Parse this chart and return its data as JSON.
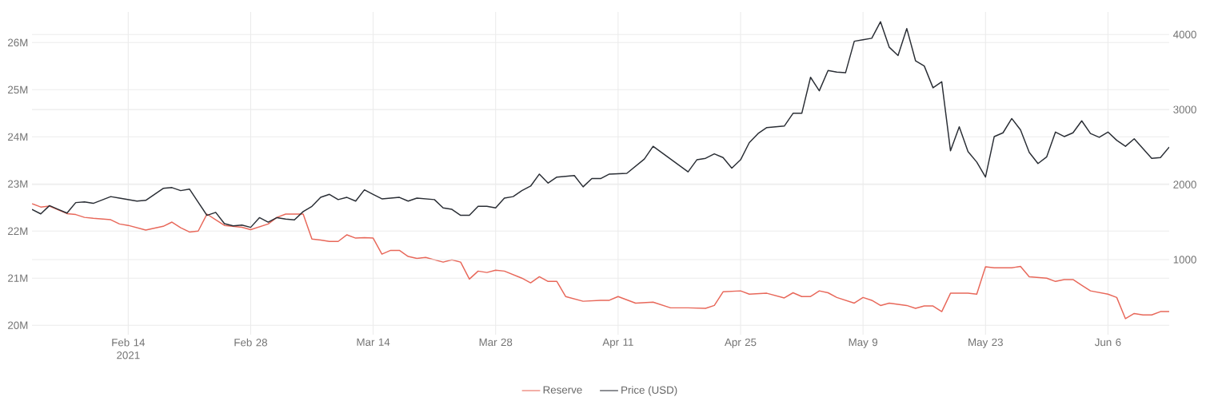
{
  "chart_data": {
    "type": "line",
    "xlim": [
      "2021-02-03",
      "2021-06-13"
    ],
    "xticks": [
      {
        "value": "2021-02-14",
        "label": "Feb 14 2021"
      },
      {
        "value": "2021-02-28",
        "label": "Feb 28"
      },
      {
        "value": "2021-03-14",
        "label": "Mar 14"
      },
      {
        "value": "2021-03-28",
        "label": "Mar 28"
      },
      {
        "value": "2021-04-11",
        "label": "Apr 11"
      },
      {
        "value": "2021-04-25",
        "label": "Apr 25"
      },
      {
        "value": "2021-05-09",
        "label": "May 9"
      },
      {
        "value": "2021-05-23",
        "label": "May 23"
      },
      {
        "value": "2021-06-06",
        "label": "Jun 6"
      }
    ],
    "ylim": [
      19.8,
      26.65
    ],
    "yticks": [
      {
        "value": 20,
        "label": "20M"
      },
      {
        "value": 21,
        "label": "21M"
      },
      {
        "value": 22,
        "label": "22M"
      },
      {
        "value": 23,
        "label": "23M"
      },
      {
        "value": 24,
        "label": "24M"
      },
      {
        "value": 25,
        "label": "25M"
      },
      {
        "value": 26,
        "label": "26M"
      }
    ],
    "y2lim": [
      0,
      4300
    ],
    "y2ticks": [
      1000,
      2000,
      3000,
      4000
    ],
    "grid": true,
    "legend": "bottom",
    "series": [
      {
        "name": "Reserve",
        "color": "#e8685a",
        "x": [
          "2021-02-03",
          "2021-02-04",
          "2021-02-05",
          "2021-02-07",
          "2021-02-08",
          "2021-02-09",
          "2021-02-10",
          "2021-02-12",
          "2021-02-13",
          "2021-02-14",
          "2021-02-16",
          "2021-02-18",
          "2021-02-19",
          "2021-02-20",
          "2021-02-21",
          "2021-02-22",
          "2021-02-23",
          "2021-02-24",
          "2021-02-25",
          "2021-02-27",
          "2021-02-28",
          "2021-03-02",
          "2021-03-03",
          "2021-03-04",
          "2021-03-06",
          "2021-03-07",
          "2021-03-08",
          "2021-03-09",
          "2021-03-10",
          "2021-03-11",
          "2021-03-12",
          "2021-03-13",
          "2021-03-14",
          "2021-03-15",
          "2021-03-16",
          "2021-03-17",
          "2021-03-18",
          "2021-03-19",
          "2021-03-20",
          "2021-03-22",
          "2021-03-23",
          "2021-03-24",
          "2021-03-25",
          "2021-03-26",
          "2021-03-27",
          "2021-03-28",
          "2021-03-29",
          "2021-03-31",
          "2021-04-01",
          "2021-04-02",
          "2021-04-03",
          "2021-04-04",
          "2021-04-05",
          "2021-04-07",
          "2021-04-09",
          "2021-04-10",
          "2021-04-11",
          "2021-04-13",
          "2021-04-15",
          "2021-04-17",
          "2021-04-19",
          "2021-04-21",
          "2021-04-22",
          "2021-04-23",
          "2021-04-25",
          "2021-04-26",
          "2021-04-28",
          "2021-04-30",
          "2021-05-01",
          "2021-05-02",
          "2021-05-03",
          "2021-05-04",
          "2021-05-05",
          "2021-05-06",
          "2021-05-08",
          "2021-05-09",
          "2021-05-10",
          "2021-05-11",
          "2021-05-12",
          "2021-05-14",
          "2021-05-15",
          "2021-05-16",
          "2021-05-17",
          "2021-05-18",
          "2021-05-19",
          "2021-05-21",
          "2021-05-22",
          "2021-05-23",
          "2021-05-24",
          "2021-05-26",
          "2021-05-27",
          "2021-05-28",
          "2021-05-30",
          "2021-05-31",
          "2021-06-01",
          "2021-06-02",
          "2021-06-03",
          "2021-06-04",
          "2021-06-06",
          "2021-06-07",
          "2021-06-08",
          "2021-06-09",
          "2021-06-10",
          "2021-06-11",
          "2021-06-12",
          "2021-06-13"
        ],
        "values": [
          22.58,
          22.51,
          22.53,
          22.37,
          22.35,
          22.29,
          22.27,
          22.24,
          22.15,
          22.12,
          22.02,
          22.1,
          22.19,
          22.07,
          21.98,
          22.0,
          22.36,
          22.24,
          22.12,
          22.08,
          22.03,
          22.15,
          22.29,
          22.36,
          22.36,
          21.83,
          21.81,
          21.78,
          21.78,
          21.92,
          21.85,
          21.86,
          21.85,
          21.51,
          21.59,
          21.59,
          21.46,
          21.42,
          21.44,
          21.34,
          21.39,
          21.34,
          20.98,
          21.15,
          21.12,
          21.17,
          21.15,
          21.0,
          20.9,
          21.03,
          20.93,
          20.93,
          20.61,
          20.51,
          20.53,
          20.53,
          20.61,
          20.47,
          20.49,
          20.37,
          20.37,
          20.36,
          20.42,
          20.71,
          20.73,
          20.66,
          20.68,
          20.58,
          20.69,
          20.61,
          20.61,
          20.73,
          20.69,
          20.59,
          20.47,
          20.59,
          20.53,
          20.42,
          20.47,
          20.42,
          20.36,
          20.41,
          20.41,
          20.29,
          20.68,
          20.68,
          20.66,
          21.24,
          21.22,
          21.22,
          21.25,
          21.03,
          21.0,
          20.93,
          20.97,
          20.97,
          20.85,
          20.73,
          20.66,
          20.59,
          20.14,
          20.25,
          20.22,
          20.22,
          20.29,
          20.29
        ]
      },
      {
        "name": "Price (USD)",
        "color": "#2a2e35",
        "axis": "y2",
        "x": [
          "2021-02-03",
          "2021-02-04",
          "2021-02-05",
          "2021-02-06",
          "2021-02-07",
          "2021-02-08",
          "2021-02-09",
          "2021-02-10",
          "2021-02-12",
          "2021-02-13",
          "2021-02-15",
          "2021-02-16",
          "2021-02-17",
          "2021-02-18",
          "2021-02-19",
          "2021-02-20",
          "2021-02-21",
          "2021-02-23",
          "2021-02-24",
          "2021-02-25",
          "2021-02-26",
          "2021-02-27",
          "2021-02-28",
          "2021-03-01",
          "2021-03-02",
          "2021-03-03",
          "2021-03-04",
          "2021-03-05",
          "2021-03-06",
          "2021-03-07",
          "2021-03-08",
          "2021-03-09",
          "2021-03-10",
          "2021-03-11",
          "2021-03-12",
          "2021-03-13",
          "2021-03-14",
          "2021-03-15",
          "2021-03-17",
          "2021-03-18",
          "2021-03-19",
          "2021-03-21",
          "2021-03-22",
          "2021-03-23",
          "2021-03-24",
          "2021-03-25",
          "2021-03-26",
          "2021-03-27",
          "2021-03-28",
          "2021-03-29",
          "2021-03-30",
          "2021-03-31",
          "2021-04-01",
          "2021-04-02",
          "2021-04-03",
          "2021-04-04",
          "2021-04-06",
          "2021-04-07",
          "2021-04-08",
          "2021-04-09",
          "2021-04-10",
          "2021-04-12",
          "2021-04-14",
          "2021-04-15",
          "2021-04-17",
          "2021-04-19",
          "2021-04-20",
          "2021-04-21",
          "2021-04-22",
          "2021-04-23",
          "2021-04-24",
          "2021-04-25",
          "2021-04-26",
          "2021-04-27",
          "2021-04-28",
          "2021-04-30",
          "2021-05-01",
          "2021-05-02",
          "2021-05-03",
          "2021-05-04",
          "2021-05-05",
          "2021-05-06",
          "2021-05-07",
          "2021-05-08",
          "2021-05-09",
          "2021-05-10",
          "2021-05-11",
          "2021-05-12",
          "2021-05-13",
          "2021-05-14",
          "2021-05-15",
          "2021-05-16",
          "2021-05-17",
          "2021-05-18",
          "2021-05-19",
          "2021-05-20",
          "2021-05-21",
          "2021-05-22",
          "2021-05-23",
          "2021-05-24",
          "2021-05-25",
          "2021-05-26",
          "2021-05-27",
          "2021-05-28",
          "2021-05-29",
          "2021-05-30",
          "2021-05-31",
          "2021-06-01",
          "2021-06-02",
          "2021-06-03",
          "2021-06-04",
          "2021-06-05",
          "2021-06-06",
          "2021-06-07",
          "2021-06-08",
          "2021-06-09",
          "2021-06-10",
          "2021-06-11",
          "2021-06-12",
          "2021-06-13"
        ],
        "values": [
          1670,
          1610,
          1720,
          1670,
          1620,
          1760,
          1770,
          1750,
          1840,
          1820,
          1780,
          1790,
          1870,
          1950,
          1960,
          1920,
          1940,
          1590,
          1630,
          1480,
          1450,
          1460,
          1430,
          1560,
          1500,
          1560,
          1540,
          1530,
          1640,
          1710,
          1830,
          1870,
          1800,
          1830,
          1780,
          1930,
          1870,
          1810,
          1830,
          1780,
          1820,
          1800,
          1690,
          1670,
          1590,
          1590,
          1710,
          1710,
          1690,
          1820,
          1840,
          1920,
          1980,
          2140,
          2020,
          2100,
          2120,
          1970,
          2080,
          2080,
          2140,
          2150,
          2340,
          2510,
          2340,
          2170,
          2330,
          2350,
          2410,
          2360,
          2220,
          2330,
          2560,
          2680,
          2760,
          2780,
          2950,
          2950,
          3430,
          3250,
          3520,
          3500,
          3490,
          3910,
          3930,
          3950,
          4170,
          3830,
          3720,
          4080,
          3650,
          3580,
          3290,
          3370,
          2450,
          2770,
          2440,
          2300,
          2100,
          2640,
          2690,
          2880,
          2730,
          2430,
          2280,
          2370,
          2700,
          2640,
          2690,
          2850,
          2680,
          2630,
          2700,
          2590,
          2510,
          2610,
          2480,
          2350,
          2360,
          2500
        ]
      }
    ]
  }
}
